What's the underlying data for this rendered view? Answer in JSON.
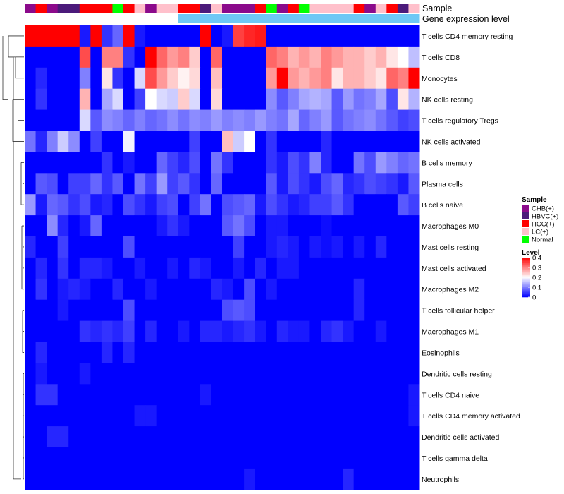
{
  "chart_data": {
    "type": "heatmap",
    "annotation_labels": [
      "Sample",
      "Gene expression level"
    ],
    "rows": [
      "T cells CD4 memory resting",
      "T cells CD8",
      "Monocytes",
      "NK cells resting",
      "T cells regulatory  Tregs",
      "NK cells activated",
      "B cells memory",
      "Plasma cells",
      "B cells naive",
      "Macrophages M0",
      "Mast cells resting",
      "Mast cells activated",
      "Macrophages M2",
      "T cells follicular helper",
      "Macrophages M1",
      "Eosinophils",
      "Dendritic cells resting",
      "T cells CD4 naive",
      "T cells CD4 memory activated",
      "Dendritic cells activated",
      "T cells gamma delta",
      "Neutrophils"
    ],
    "sample_annotation": [
      "CHB(+)",
      "HCC(+)",
      "CHB(+)",
      "HBVC(+)",
      "HBVC(+)",
      "HCC(+)",
      "HCC(+)",
      "HCC(+)",
      "Normal",
      "HCC(+)",
      "LC(+)",
      "CHB(+)",
      "LC(+)",
      "LC(+)",
      "HCC(+)",
      "HCC(+)",
      "HBVC(+)",
      "LC(+)",
      "CHB(+)",
      "CHB(+)",
      "CHB(+)",
      "HCC(+)",
      "Normal",
      "CHB(+)",
      "HCC(+)",
      "Normal",
      "LC(+)",
      "LC(+)",
      "LC(+)",
      "LC(+)",
      "HCC(+)",
      "CHB(+)",
      "LC(+)",
      "HCC(+)",
      "HBVC(+)",
      "LC(+)"
    ],
    "values": [
      [
        0.4,
        0.4,
        0.4,
        0.4,
        0.4,
        0.02,
        0.4,
        0.04,
        0.08,
        0.4,
        0.02,
        0.0,
        0.0,
        0.0,
        0.0,
        0.0,
        0.4,
        0.0,
        0.02,
        0.35,
        0.37,
        0.38,
        0.0,
        0.0,
        0.0,
        0.0,
        0.0,
        0.0,
        0.0,
        0.0,
        0.0,
        0.0,
        0.0,
        0.0,
        0.0,
        0.0
      ],
      [
        0.0,
        0.0,
        0.0,
        0.0,
        0.0,
        0.34,
        0.0,
        0.3,
        0.3,
        0.04,
        0.0,
        0.4,
        0.32,
        0.28,
        0.3,
        0.24,
        0.0,
        0.32,
        0.0,
        0.0,
        0.0,
        0.0,
        0.32,
        0.3,
        0.26,
        0.28,
        0.26,
        0.3,
        0.28,
        0.26,
        0.26,
        0.24,
        0.26,
        0.22,
        0.2,
        0.15
      ],
      [
        0.0,
        0.03,
        0.0,
        0.0,
        0.0,
        0.1,
        0.0,
        0.22,
        0.04,
        0.0,
        0.17,
        0.34,
        0.28,
        0.24,
        0.21,
        0.23,
        0.0,
        0.25,
        0.0,
        0.0,
        0.0,
        0.0,
        0.28,
        0.4,
        0.28,
        0.26,
        0.28,
        0.3,
        0.22,
        0.26,
        0.26,
        0.24,
        0.22,
        0.32,
        0.3,
        0.4
      ],
      [
        0.0,
        0.04,
        0.0,
        0.0,
        0.0,
        0.26,
        0.0,
        0.13,
        0.17,
        0.0,
        0.05,
        0.2,
        0.17,
        0.16,
        0.24,
        0.17,
        0.0,
        0.23,
        0.0,
        0.0,
        0.0,
        0.0,
        0.11,
        0.07,
        0.1,
        0.13,
        0.14,
        0.13,
        0.07,
        0.12,
        0.09,
        0.1,
        0.13,
        0.06,
        0.22,
        0.14
      ],
      [
        0.0,
        0.0,
        0.0,
        0.0,
        0.0,
        0.17,
        0.07,
        0.11,
        0.1,
        0.08,
        0.1,
        0.08,
        0.09,
        0.11,
        0.09,
        0.11,
        0.1,
        0.12,
        0.1,
        0.11,
        0.1,
        0.12,
        0.1,
        0.09,
        0.13,
        0.08,
        0.1,
        0.12,
        0.07,
        0.09,
        0.1,
        0.11,
        0.09,
        0.07,
        0.05,
        0.06
      ],
      [
        0.09,
        0.03,
        0.1,
        0.16,
        0.11,
        0.0,
        0.05,
        0.0,
        0.0,
        0.19,
        0.0,
        0.0,
        0.0,
        0.0,
        0.0,
        0.05,
        0.0,
        0.0,
        0.25,
        0.16,
        0.2,
        0.0,
        0.04,
        0.0,
        0.0,
        0.0,
        0.0,
        0.03,
        0.0,
        0.0,
        0.0,
        0.0,
        0.0,
        0.0,
        0.0,
        0.0
      ],
      [
        0.0,
        0.0,
        0.0,
        0.0,
        0.0,
        0.0,
        0.0,
        0.04,
        0.0,
        0.02,
        0.0,
        0.0,
        0.08,
        0.05,
        0.03,
        0.06,
        0.0,
        0.09,
        0.04,
        0.0,
        0.0,
        0.0,
        0.04,
        0.02,
        0.06,
        0.04,
        0.1,
        0.03,
        0.0,
        0.0,
        0.09,
        0.06,
        0.12,
        0.1,
        0.08,
        0.09
      ],
      [
        0.0,
        0.07,
        0.06,
        0.0,
        0.05,
        0.05,
        0.08,
        0.04,
        0.07,
        0.0,
        0.09,
        0.05,
        0.12,
        0.05,
        0.07,
        0.04,
        0.0,
        0.08,
        0.0,
        0.0,
        0.0,
        0.0,
        0.07,
        0.02,
        0.06,
        0.04,
        0.02,
        0.06,
        0.08,
        0.03,
        0.04,
        0.06,
        0.05,
        0.04,
        0.02,
        0.07
      ],
      [
        0.12,
        0.02,
        0.08,
        0.07,
        0.04,
        0.06,
        0.02,
        0.03,
        0.0,
        0.06,
        0.04,
        0.02,
        0.05,
        0.06,
        0.0,
        0.05,
        0.09,
        0.0,
        0.06,
        0.07,
        0.08,
        0.02,
        0.06,
        0.04,
        0.02,
        0.03,
        0.05,
        0.05,
        0.07,
        0.04,
        0.0,
        0.0,
        0.0,
        0.0,
        0.07,
        0.05
      ],
      [
        0.0,
        0.0,
        0.11,
        0.03,
        0.0,
        0.02,
        0.08,
        0.0,
        0.0,
        0.0,
        0.0,
        0.0,
        0.02,
        0.04,
        0.02,
        0.0,
        0.0,
        0.0,
        0.07,
        0.09,
        0.06,
        0.0,
        0.02,
        0.02,
        0.0,
        0.0,
        0.0,
        0.01,
        0.0,
        0.0,
        0.0,
        0.0,
        0.0,
        0.0,
        0.0,
        0.0
      ],
      [
        0.03,
        0.0,
        0.0,
        0.05,
        0.0,
        0.0,
        0.0,
        0.0,
        0.0,
        0.06,
        0.0,
        0.0,
        0.0,
        0.0,
        0.0,
        0.0,
        0.0,
        0.0,
        0.0,
        0.05,
        0.0,
        0.0,
        0.02,
        0.03,
        0.02,
        0.0,
        0.02,
        0.01,
        0.02,
        0.0,
        0.02,
        0.0,
        0.03,
        0.0,
        0.0,
        0.0
      ],
      [
        0.0,
        0.03,
        0.0,
        0.04,
        0.0,
        0.03,
        0.03,
        0.02,
        0.0,
        0.0,
        0.02,
        0.0,
        0.0,
        0.02,
        0.0,
        0.03,
        0.02,
        0.0,
        0.0,
        0.02,
        0.0,
        0.03,
        0.0,
        0.02,
        0.02,
        0.0,
        0.0,
        0.0,
        0.0,
        0.0,
        0.0,
        0.0,
        0.0,
        0.0,
        0.0,
        0.0
      ],
      [
        0.0,
        0.04,
        0.0,
        0.02,
        0.03,
        0.02,
        0.0,
        0.0,
        0.03,
        0.0,
        0.0,
        0.02,
        0.0,
        0.0,
        0.0,
        0.0,
        0.0,
        0.03,
        0.02,
        0.0,
        0.06,
        0.0,
        0.02,
        0.0,
        0.0,
        0.0,
        0.0,
        0.0,
        0.0,
        0.0,
        0.03,
        0.0,
        0.0,
        0.0,
        0.0,
        0.0
      ],
      [
        0.0,
        0.0,
        0.0,
        0.02,
        0.0,
        0.0,
        0.0,
        0.0,
        0.0,
        0.06,
        0.0,
        0.0,
        0.0,
        0.0,
        0.0,
        0.0,
        0.0,
        0.0,
        0.06,
        0.07,
        0.06,
        0.0,
        0.0,
        0.0,
        0.0,
        0.0,
        0.0,
        0.0,
        0.0,
        0.0,
        0.03,
        0.0,
        0.0,
        0.0,
        0.0,
        0.0
      ],
      [
        0.0,
        0.0,
        0.0,
        0.0,
        0.0,
        0.04,
        0.03,
        0.04,
        0.03,
        0.05,
        0.0,
        0.03,
        0.0,
        0.0,
        0.02,
        0.0,
        0.03,
        0.03,
        0.02,
        0.03,
        0.04,
        0.02,
        0.0,
        0.03,
        0.02,
        0.02,
        0.0,
        0.03,
        0.04,
        0.02,
        0.0,
        0.0,
        0.02,
        0.0,
        0.0,
        0.0
      ],
      [
        0.0,
        0.03,
        0.0,
        0.0,
        0.0,
        0.0,
        0.0,
        0.03,
        0.0,
        0.03,
        0.0,
        0.0,
        0.0,
        0.0,
        0.0,
        0.0,
        0.0,
        0.0,
        0.0,
        0.0,
        0.0,
        0.0,
        0.0,
        0.0,
        0.0,
        0.0,
        0.0,
        0.0,
        0.0,
        0.0,
        0.0,
        0.0,
        0.0,
        0.0,
        0.0,
        0.0
      ],
      [
        0.0,
        0.02,
        0.0,
        0.0,
        0.0,
        0.02,
        0.0,
        0.0,
        0.0,
        0.0,
        0.0,
        0.0,
        0.0,
        0.0,
        0.0,
        0.0,
        0.0,
        0.0,
        0.0,
        0.0,
        0.0,
        0.0,
        0.0,
        0.0,
        0.0,
        0.0,
        0.0,
        0.0,
        0.0,
        0.0,
        0.0,
        0.0,
        0.0,
        0.0,
        0.0,
        0.0
      ],
      [
        0.0,
        0.04,
        0.04,
        0.0,
        0.0,
        0.0,
        0.0,
        0.0,
        0.0,
        0.0,
        0.0,
        0.0,
        0.0,
        0.0,
        0.0,
        0.0,
        0.02,
        0.0,
        0.0,
        0.0,
        0.0,
        0.0,
        0.0,
        0.0,
        0.0,
        0.0,
        0.0,
        0.0,
        0.0,
        0.0,
        0.0,
        0.0,
        0.0,
        0.0,
        0.0,
        0.02
      ],
      [
        0.0,
        0.0,
        0.0,
        0.0,
        0.0,
        0.0,
        0.0,
        0.0,
        0.0,
        0.0,
        0.02,
        0.02,
        0.0,
        0.0,
        0.0,
        0.0,
        0.0,
        0.0,
        0.0,
        0.0,
        0.0,
        0.0,
        0.0,
        0.0,
        0.0,
        0.0,
        0.0,
        0.0,
        0.0,
        0.0,
        0.0,
        0.0,
        0.0,
        0.0,
        0.0,
        0.02
      ],
      [
        0.0,
        0.0,
        0.03,
        0.03,
        0.0,
        0.0,
        0.0,
        0.0,
        0.0,
        0.0,
        0.0,
        0.0,
        0.0,
        0.0,
        0.0,
        0.0,
        0.0,
        0.0,
        0.0,
        0.0,
        0.0,
        0.0,
        0.0,
        0.0,
        0.0,
        0.0,
        0.0,
        0.0,
        0.0,
        0.0,
        0.0,
        0.0,
        0.0,
        0.0,
        0.0,
        0.0
      ],
      [
        0.0,
        0.0,
        0.0,
        0.0,
        0.0,
        0.0,
        0.0,
        0.0,
        0.0,
        0.0,
        0.0,
        0.0,
        0.0,
        0.0,
        0.0,
        0.0,
        0.0,
        0.0,
        0.0,
        0.0,
        0.0,
        0.0,
        0.0,
        0.0,
        0.0,
        0.0,
        0.0,
        0.0,
        0.0,
        0.0,
        0.0,
        0.0,
        0.0,
        0.0,
        0.0,
        0.0
      ],
      [
        0.0,
        0.0,
        0.0,
        0.0,
        0.0,
        0.0,
        0.0,
        0.0,
        0.0,
        0.0,
        0.0,
        0.0,
        0.0,
        0.0,
        0.0,
        0.0,
        0.0,
        0.0,
        0.0,
        0.0,
        0.02,
        0.0,
        0.0,
        0.0,
        0.0,
        0.0,
        0.0,
        0.0,
        0.0,
        0.03,
        0.0,
        0.0,
        0.0,
        0.0,
        0.0,
        0.0
      ]
    ],
    "gene_expression_level": [
      "low",
      "low",
      "low",
      "low",
      "low",
      "low",
      "low",
      "low",
      "low",
      "low",
      "low",
      "low",
      "low",
      "low",
      "high",
      "high",
      "high",
      "high",
      "high",
      "high",
      "high",
      "high",
      "high",
      "high",
      "high",
      "high",
      "high",
      "high",
      "high",
      "high",
      "high",
      "high",
      "high",
      "high",
      "high",
      "high"
    ],
    "colors": {
      "low": "#0000ff",
      "mid": "#ffffff",
      "high": "#ff0000",
      "gene_expression_low": "#ffffff",
      "gene_expression_high": "#6ec8f5"
    },
    "legend_sample": {
      "title": "Sample",
      "items": [
        {
          "label": "CHB(+)",
          "color": "#8b0a8b"
        },
        {
          "label": "HBVC(+)",
          "color": "#4b1a7a"
        },
        {
          "label": "HCC(+)",
          "color": "#ff0000"
        },
        {
          "label": "LC(+)",
          "color": "#ffc0cb"
        },
        {
          "label": "Normal",
          "color": "#00ff00"
        }
      ]
    },
    "legend_level": {
      "title": "Level",
      "ticks": [
        0.4,
        0.3,
        0.2,
        0.1,
        0
      ],
      "tick_labels": [
        "0.4",
        "0.3",
        "0.2",
        "0.1",
        "0"
      ],
      "range": [
        0,
        0.4
      ]
    }
  }
}
